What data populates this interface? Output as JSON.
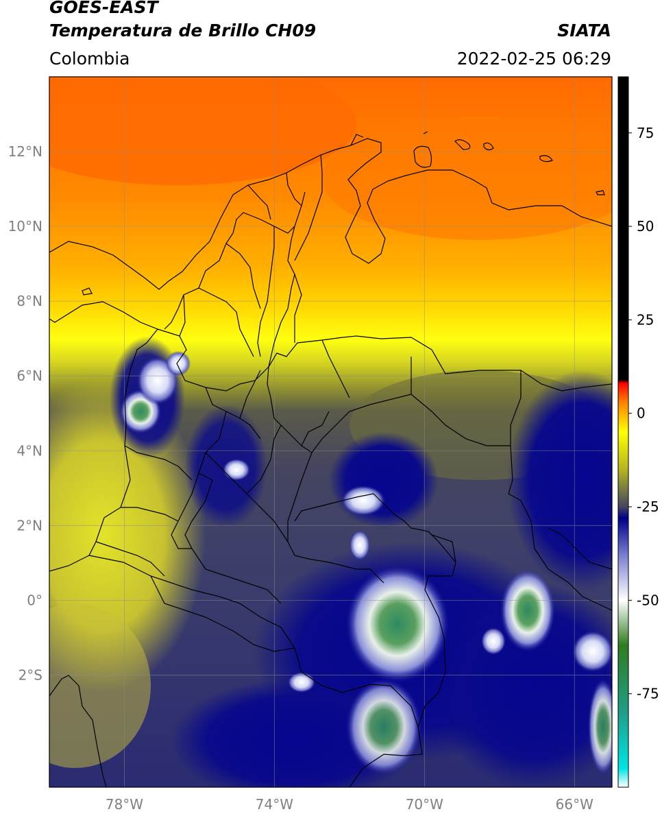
{
  "header": {
    "satellite": "GOES-EAST",
    "product": "Temperatura de Brillo CH09",
    "region": "Colombia",
    "organization": "SIATA",
    "datetime": "2022-02-25 06:29"
  },
  "map": {
    "lon_range": [
      -80,
      -65
    ],
    "lat_range": [
      -5,
      14
    ],
    "lon_ticks": [
      {
        "value": -78,
        "label": "78°W"
      },
      {
        "value": -74,
        "label": "74°W"
      },
      {
        "value": -70,
        "label": "70°W"
      },
      {
        "value": -66,
        "label": "66°W"
      }
    ],
    "lat_ticks": [
      {
        "value": 12,
        "label": "12°N"
      },
      {
        "value": 10,
        "label": "10°N"
      },
      {
        "value": 8,
        "label": "8°N"
      },
      {
        "value": 6,
        "label": "6°N"
      },
      {
        "value": 4,
        "label": "4°N"
      },
      {
        "value": 2,
        "label": "2°N"
      },
      {
        "value": 0,
        "label": "0°"
      },
      {
        "value": -2,
        "label": "2°S"
      }
    ],
    "grid": true
  },
  "colorbar": {
    "range": [
      -100,
      90
    ],
    "ticks": [
      {
        "value": 75,
        "label": "75"
      },
      {
        "value": 50,
        "label": "50"
      },
      {
        "value": 25,
        "label": "25"
      },
      {
        "value": 0,
        "label": "0"
      },
      {
        "value": -25,
        "label": "-25"
      },
      {
        "value": -50,
        "label": "-50"
      },
      {
        "value": -75,
        "label": "-75"
      }
    ],
    "stops": [
      {
        "value": -100,
        "color": "#ffffff"
      },
      {
        "value": -95,
        "color": "#00e5e5"
      },
      {
        "value": -80,
        "color": "#1f9e89"
      },
      {
        "value": -62,
        "color": "#2e7d1f"
      },
      {
        "value": -50,
        "color": "#ffffff"
      },
      {
        "value": -38,
        "color": "#7a7fd0"
      },
      {
        "value": -28,
        "color": "#00008b"
      },
      {
        "value": -25,
        "color": "#454560"
      },
      {
        "value": -15,
        "color": "#b5b51f"
      },
      {
        "value": -5,
        "color": "#ffff00"
      },
      {
        "value": 3,
        "color": "#ff8000"
      },
      {
        "value": 8,
        "color": "#ff0000"
      },
      {
        "value": 9,
        "color": "#000000"
      },
      {
        "value": 90,
        "color": "#000000"
      }
    ]
  }
}
